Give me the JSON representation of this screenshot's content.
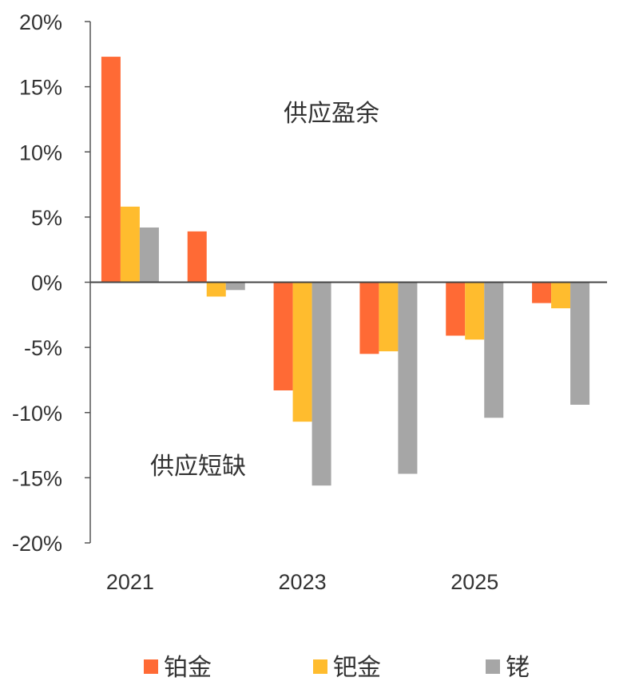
{
  "chart_data": {
    "type": "bar",
    "title": "",
    "xlabel": "",
    "ylabel": "",
    "categories": [
      "2021",
      "2022",
      "2023",
      "2024",
      "2025",
      "2026"
    ],
    "x_tick_labels": [
      "2021",
      "",
      "2023",
      "",
      "2025",
      ""
    ],
    "ylim": [
      -20,
      20
    ],
    "y_ticks": [
      20,
      15,
      10,
      5,
      0,
      -5,
      -10,
      -15,
      -20
    ],
    "y_tick_labels": [
      "20%",
      "15%",
      "10%",
      "5%",
      "0%",
      "-5%",
      "-10%",
      "-15%",
      "-20%"
    ],
    "grid": false,
    "legend_position": "bottom",
    "series": [
      {
        "name": "铂金",
        "color": "#FF6A35",
        "values": [
          17.3,
          3.9,
          -8.3,
          -5.5,
          -4.1,
          -1.6
        ]
      },
      {
        "name": "钯金",
        "color": "#FFBC2E",
        "values": [
          5.8,
          -1.1,
          -10.7,
          -5.3,
          -4.4,
          -2.0
        ]
      },
      {
        "name": "铑",
        "color": "#A6A6A6",
        "values": [
          4.2,
          -0.6,
          -15.6,
          -14.7,
          -10.4,
          -9.4
        ]
      }
    ],
    "annotations": [
      "供应盈余",
      "供应短缺"
    ]
  }
}
